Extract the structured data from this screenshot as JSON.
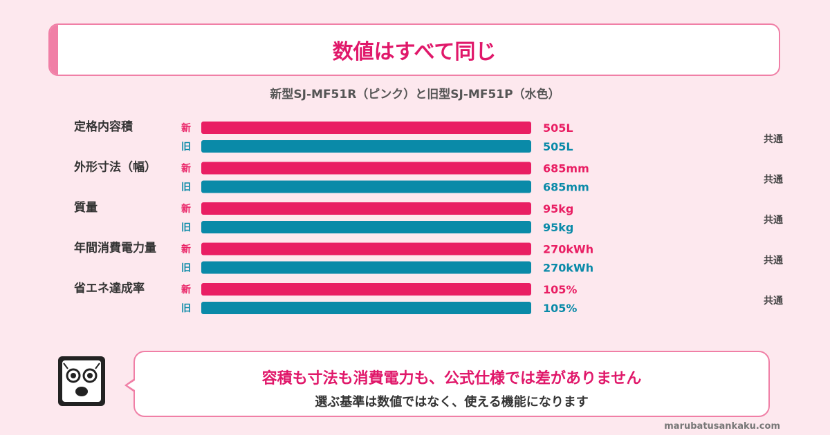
{
  "header": {
    "title": "数値はすべて同じ",
    "subtitle": "新型SJ-MF51R（ピンク）と旧型SJ-MF51P（水色）"
  },
  "chart_data": {
    "type": "bar",
    "orientation": "horizontal",
    "title": "数値はすべて同じ",
    "subtitle": "新型SJ-MF51R（ピンク）と旧型SJ-MF51P（水色）",
    "series_labels": {
      "new": "新",
      "old": "旧"
    },
    "common_label": "共通",
    "colors": {
      "new": "#e91e63",
      "old": "#0a8aa8"
    },
    "categories": [
      {
        "name": "定格内容積",
        "new_value": 505,
        "old_value": 505,
        "new_label": "505L",
        "old_label": "505L"
      },
      {
        "name": "外形寸法（幅）",
        "new_value": 685,
        "old_value": 685,
        "new_label": "685mm",
        "old_label": "685mm"
      },
      {
        "name": "質量",
        "new_value": 95,
        "old_value": 95,
        "new_label": "95kg",
        "old_label": "95kg"
      },
      {
        "name": "年間消費電力量",
        "new_value": 270,
        "old_value": 270,
        "new_label": "270kWh",
        "old_label": "270kWh"
      },
      {
        "name": "省エネ達成率",
        "new_value": 105,
        "old_value": 105,
        "new_label": "105%",
        "old_label": "105%"
      }
    ]
  },
  "message": {
    "line1": "容積も寸法も消費電力も、公式仕様では差がありません",
    "line2": "選ぶ基準は数値ではなく、使える機能になります"
  },
  "footer": {
    "site": "marubatusankaku.com"
  }
}
